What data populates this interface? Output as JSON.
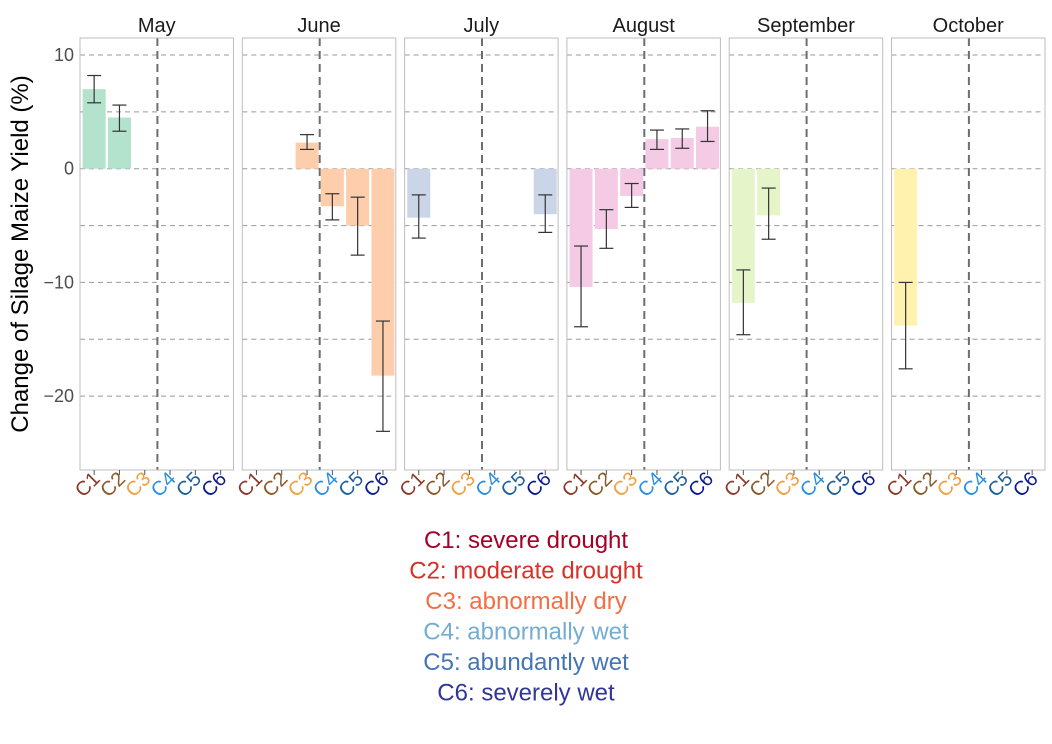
{
  "chart_data": {
    "type": "bar",
    "ylabel": "Change of Silage Maize Yield (%)",
    "ylim": [
      -26.5,
      11.5
    ],
    "yticks": [
      10,
      0,
      -10,
      -20
    ],
    "ytick_labels": [
      "10",
      "0",
      "−10",
      "−20"
    ],
    "grid_y": [
      -20,
      -15,
      -10,
      -5,
      0,
      5,
      10
    ],
    "categories": [
      "C1",
      "C2",
      "C3",
      "C4",
      "C5",
      "C6"
    ],
    "category_colors": [
      "#8B3A2A",
      "#8B5A2B",
      "#F0A040",
      "#2A8FE0",
      "#1F5F99",
      "#0A1A8C"
    ],
    "panels": [
      {
        "title": "May",
        "bar_color": "#b3e2cd",
        "bars": [
          {
            "category": "C1",
            "value": 7.0,
            "err_low": 5.8,
            "err_high": 8.2
          },
          {
            "category": "C2",
            "value": 4.5,
            "err_low": 3.3,
            "err_high": 5.6
          }
        ]
      },
      {
        "title": "June",
        "bar_color": "#fdcdac",
        "bars": [
          {
            "category": "C3",
            "value": 2.3,
            "err_low": 1.7,
            "err_high": 3.0
          },
          {
            "category": "C4",
            "value": -3.3,
            "err_low": -4.5,
            "err_high": -2.2
          },
          {
            "category": "C5",
            "value": -5.0,
            "err_low": -7.6,
            "err_high": -2.5
          },
          {
            "category": "C6",
            "value": -18.2,
            "err_low": -23.1,
            "err_high": -13.4
          }
        ]
      },
      {
        "title": "July",
        "bar_color": "#cbd5e8",
        "bars": [
          {
            "category": "C1",
            "value": -4.3,
            "err_low": -6.1,
            "err_high": -2.3
          },
          {
            "category": "C6",
            "value": -4.0,
            "err_low": -5.6,
            "err_high": -2.3
          }
        ]
      },
      {
        "title": "August",
        "bar_color": "#f4cae4",
        "bars": [
          {
            "category": "C1",
            "value": -10.4,
            "err_low": -13.9,
            "err_high": -6.8
          },
          {
            "category": "C2",
            "value": -5.3,
            "err_low": -7.0,
            "err_high": -3.6
          },
          {
            "category": "C3",
            "value": -2.4,
            "err_low": -3.4,
            "err_high": -1.3
          },
          {
            "category": "C4",
            "value": 2.6,
            "err_low": 1.7,
            "err_high": 3.4
          },
          {
            "category": "C5",
            "value": 2.7,
            "err_low": 1.8,
            "err_high": 3.5
          },
          {
            "category": "C6",
            "value": 3.7,
            "err_low": 2.4,
            "err_high": 5.1
          }
        ]
      },
      {
        "title": "September",
        "bar_color": "#e6f5c9",
        "bars": [
          {
            "category": "C1",
            "value": -11.8,
            "err_low": -14.6,
            "err_high": -8.9
          },
          {
            "category": "C2",
            "value": -4.1,
            "err_low": -6.2,
            "err_high": -1.7
          }
        ]
      },
      {
        "title": "October",
        "bar_color": "#fff2ae",
        "bars": [
          {
            "category": "C1",
            "value": -13.8,
            "err_low": -17.6,
            "err_high": -10.0
          }
        ]
      }
    ],
    "legend": [
      {
        "text": "C1: severe drought",
        "color": "#A50026"
      },
      {
        "text": "C2: moderate drought",
        "color": "#D73027"
      },
      {
        "text": "C3: abnormally dry",
        "color": "#F46D43"
      },
      {
        "text": "C4: abnormally wet",
        "color": "#74ADD1"
      },
      {
        "text": "C5: abundantly wet",
        "color": "#4575B4"
      },
      {
        "text": "C6: severely wet",
        "color": "#313695"
      }
    ]
  }
}
